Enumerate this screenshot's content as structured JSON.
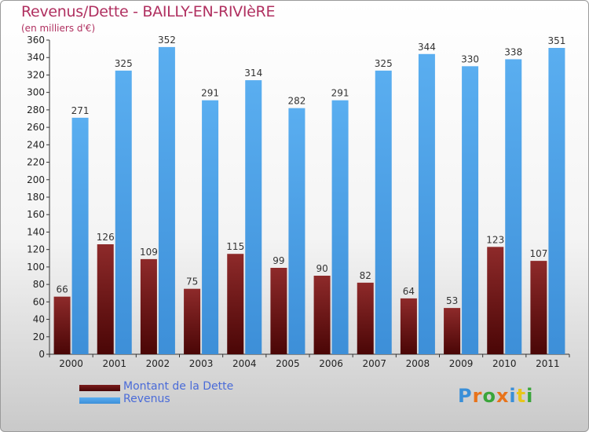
{
  "title": "Revenus/Dette - BAILLY-EN-RIVIèRE",
  "unit_note": "(en milliers d'€)",
  "logo_text": "Proxiti",
  "colors": {
    "debt": "#7a1c1c",
    "revenue": "#4a9ee6",
    "title": "#b03060",
    "legend_text": "#4a6bd8"
  },
  "chart_data": {
    "type": "bar",
    "title": "Revenus/Dette - BAILLY-EN-RIVIèRE",
    "categories": [
      "2000",
      "2001",
      "2002",
      "2003",
      "2004",
      "2005",
      "2006",
      "2007",
      "2008",
      "2009",
      "2010",
      "2011"
    ],
    "series": [
      {
        "name": "Montant de la Dette",
        "values": [
          66,
          126,
          109,
          75,
          115,
          99,
          90,
          82,
          64,
          53,
          123,
          107
        ]
      },
      {
        "name": "Revenus",
        "values": [
          271,
          325,
          352,
          291,
          314,
          282,
          291,
          325,
          344,
          330,
          338,
          351
        ]
      }
    ],
    "ylim": [
      0,
      360
    ],
    "yticks": [
      0,
      20,
      40,
      60,
      80,
      100,
      120,
      140,
      160,
      180,
      200,
      220,
      240,
      260,
      280,
      300,
      320,
      340,
      360
    ],
    "grid": false,
    "legend": "bottom-left"
  }
}
